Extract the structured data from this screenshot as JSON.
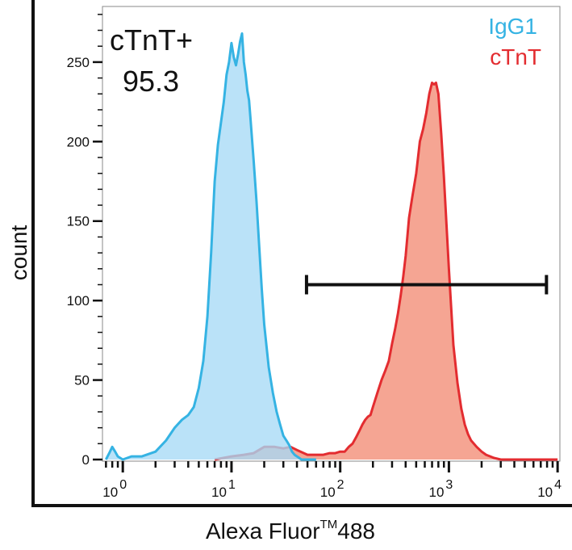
{
  "chart_data": {
    "type": "area",
    "xlabel": "Alexa Fluor",
    "xlabel_tm": "TM",
    "xlabel_suffix": "488",
    "ylabel": "count",
    "x_scale": "log",
    "xlim": [
      0.65,
      10500
    ],
    "ylim": [
      0,
      285
    ],
    "y_ticks": [
      0,
      50,
      100,
      150,
      200,
      250
    ],
    "x_ticks": [
      {
        "base": "10",
        "exp": "0",
        "value": 1
      },
      {
        "base": "10",
        "exp": "1",
        "value": 10
      },
      {
        "base": "10",
        "exp": "2",
        "value": 100
      },
      {
        "base": "10",
        "exp": "3",
        "value": 1000
      },
      {
        "base": "10",
        "exp": "4",
        "value": 10000
      }
    ],
    "gate": {
      "label": "cTnT+",
      "value": "95.3",
      "x_range": [
        49,
        7900
      ],
      "y": 110
    },
    "legend_placement": "top-right",
    "series": [
      {
        "name": "IgG1",
        "color": "#35b3e3",
        "fill": "#a6daf6",
        "x": [
          0.7,
          0.75,
          0.8,
          0.85,
          0.9,
          1.0,
          1.2,
          1.5,
          2.0,
          2.5,
          3.0,
          3.5,
          4.0,
          4.5,
          5.0,
          5.5,
          6.0,
          6.5,
          7.0,
          7.5,
          8.0,
          8.5,
          9.0,
          9.5,
          10.0,
          10.5,
          11.0,
          11.5,
          12.0,
          12.5,
          13.0,
          13.5,
          14.0,
          14.5,
          15.0,
          16.0,
          17.0,
          18.0,
          19.0,
          20.0,
          22.0,
          24.0,
          26.0,
          28.0,
          30.0,
          32.0,
          34.0,
          36.0,
          38.0,
          40.0,
          42.0,
          44.0,
          46.0,
          48.0,
          50.0,
          55.0,
          60.0
        ],
        "y": [
          0,
          4,
          8,
          5,
          2,
          0,
          2,
          2,
          5,
          12,
          20,
          25,
          28,
          33,
          45,
          62,
          90,
          130,
          175,
          198,
          212,
          225,
          242,
          250,
          262,
          253,
          248,
          255,
          263,
          268,
          250,
          242,
          232,
          226,
          213,
          188,
          162,
          134,
          107,
          85,
          58,
          42,
          30,
          22,
          15,
          12,
          9,
          5,
          3,
          2,
          1,
          0,
          0,
          0,
          0,
          0,
          0
        ]
      },
      {
        "name": "cTnT",
        "color": "#e32c30",
        "fill": "#f5a593",
        "x": [
          7.0,
          10.0,
          13.0,
          16.0,
          20.0,
          25.0,
          30.0,
          35.0,
          40.0,
          50.0,
          60.0,
          70.0,
          80.0,
          90.0,
          100.0,
          110.0,
          120.0,
          130.0,
          140.0,
          150.0,
          160.0,
          170.0,
          180.0,
          190.0,
          200.0,
          220.0,
          240.0,
          260.0,
          280.0,
          300.0,
          320.0,
          340.0,
          360.0,
          380.0,
          400.0,
          430.0,
          460.0,
          500.0,
          540.0,
          580.0,
          620.0,
          660.0,
          700.0,
          730.0,
          760.0,
          800.0,
          850.0,
          900.0,
          950.0,
          1000.0,
          1050.0,
          1100.0,
          1200.0,
          1300.0,
          1400.0,
          1500.0,
          1600.0,
          1800.0,
          2000.0,
          2200.0,
          2400.0,
          2600.0,
          3000.0,
          3500.0,
          4000.0,
          5000.0,
          7000.0,
          10000.0
        ],
        "y": [
          0,
          2,
          3,
          4,
          8,
          8,
          7,
          8,
          6,
          3,
          3,
          3,
          4,
          4,
          5,
          5,
          8,
          10,
          14,
          18,
          22,
          25,
          27,
          28,
          33,
          42,
          50,
          56,
          62,
          73,
          82,
          92,
          103,
          115,
          128,
          152,
          165,
          180,
          200,
          208,
          218,
          230,
          237,
          236,
          237,
          230,
          205,
          178,
          148,
          120,
          95,
          72,
          48,
          32,
          22,
          16,
          12,
          8,
          5,
          3,
          2,
          1,
          0,
          0,
          0,
          0,
          0,
          0
        ]
      }
    ]
  }
}
